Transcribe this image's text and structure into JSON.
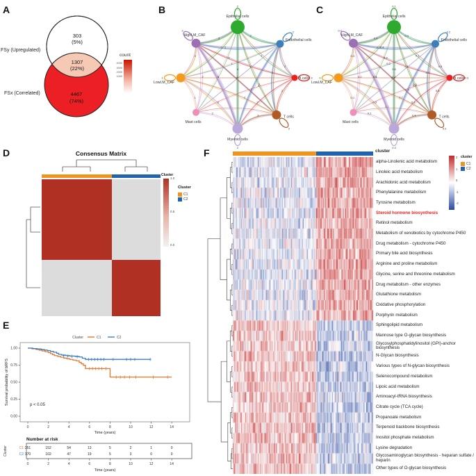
{
  "panels": {
    "a": "A",
    "b": "B",
    "c": "C",
    "d": "D",
    "e": "E",
    "f": "F"
  },
  "venn": {
    "set1_label": "FSy (Upregulated)",
    "set2_label": "FSx (Correlated)",
    "region1_count": "303",
    "region1_pct": "(5%)",
    "overlap_count": "1307",
    "overlap_pct": "(22%)",
    "region2_count": "4467",
    "region2_pct": "(74%)",
    "legend_title": "count",
    "legend_ticks": [
      "4000",
      "3000",
      "2000",
      "1000"
    ],
    "colors": {
      "set1_fill": "#ffffff",
      "overlap_fill": "#f6c9b5",
      "set2_fill": "#ec2024"
    }
  },
  "cell_network": {
    "nodes": [
      {
        "name": "Epithelial cells",
        "color": "#2eaa2e",
        "size": 10,
        "angle": -90
      },
      {
        "name": "Endothelial cells",
        "color": "#3d7fb8",
        "size": 5.5,
        "angle": -42
      },
      {
        "name": "B cells",
        "color": "#e8201f",
        "size": 4.5,
        "angle": 0
      },
      {
        "name": "T cells",
        "color": "#b05a28",
        "size": 6.5,
        "angle": 47
      },
      {
        "name": "Myeloid cells",
        "color": "#b9a8d8",
        "size": 7.5,
        "angle": 90
      },
      {
        "name": "Mast cells",
        "color": "#ee8fba",
        "size": 5,
        "angle": 137
      },
      {
        "name": "LowLM_CAF",
        "color": "#f49b1f",
        "size": 6.5,
        "angle": 180
      },
      {
        "name": "HighLM_CAF",
        "color": "#9c6fb5",
        "size": 6.5,
        "angle": -137
      }
    ],
    "edges": [
      {
        "s": 0,
        "t": 1,
        "w": 1.6,
        "b": "2",
        "c": "0.4"
      },
      {
        "s": 0,
        "t": 2,
        "w": 1.0,
        "b": "1",
        "c": "0.1"
      },
      {
        "s": 0,
        "t": 3,
        "w": 1.2,
        "b": "2",
        "c": "0.3"
      },
      {
        "s": 0,
        "t": 4,
        "w": 3.0,
        "b": "4",
        "c": "0.5"
      },
      {
        "s": 0,
        "t": 5,
        "w": 0.8,
        "b": "1",
        "c": "0.1"
      },
      {
        "s": 0,
        "t": 6,
        "w": 1.2,
        "b": "2",
        "c": "0.2"
      },
      {
        "s": 0,
        "t": 7,
        "w": 2.2,
        "b": "3",
        "c": "0.4"
      },
      {
        "s": 1,
        "t": 2,
        "w": 1.2,
        "b": "2",
        "c": "0.5"
      },
      {
        "s": 1,
        "t": 3,
        "w": 1.8,
        "b": "3",
        "c": "0.5"
      },
      {
        "s": 1,
        "t": 4,
        "w": 2.2,
        "b": "3",
        "c": "0.4"
      },
      {
        "s": 1,
        "t": 5,
        "w": 0.8,
        "b": "1",
        "c": "0.1"
      },
      {
        "s": 1,
        "t": 6,
        "w": 0.9,
        "b": "1",
        "c": "0.2"
      },
      {
        "s": 1,
        "t": 7,
        "w": 1.8,
        "b": "2",
        "c": "0.4"
      },
      {
        "s": 2,
        "t": 3,
        "w": 1.2,
        "b": "2",
        "c": "0.4"
      },
      {
        "s": 2,
        "t": 4,
        "w": 1.2,
        "b": "2",
        "c": "0.3"
      },
      {
        "s": 2,
        "t": 5,
        "w": 0.7,
        "b": "1",
        "c": "0.1"
      },
      {
        "s": 2,
        "t": 6,
        "w": 0.8,
        "b": "1",
        "c": "0.2"
      },
      {
        "s": 2,
        "t": 7,
        "w": 1.2,
        "b": "2",
        "c": "0.3"
      },
      {
        "s": 3,
        "t": 4,
        "w": 1.8,
        "b": "3",
        "c": "0.4"
      },
      {
        "s": 3,
        "t": 5,
        "w": 0.8,
        "b": "1",
        "c": "0.2"
      },
      {
        "s": 3,
        "t": 6,
        "w": 1.0,
        "b": "2",
        "c": "0.2"
      },
      {
        "s": 3,
        "t": 7,
        "w": 1.8,
        "b": "3",
        "c": "0.4"
      },
      {
        "s": 4,
        "t": 5,
        "w": 1.0,
        "b": "2",
        "c": "0.2"
      },
      {
        "s": 4,
        "t": 6,
        "w": 1.8,
        "b": "3",
        "c": "0.3"
      },
      {
        "s": 4,
        "t": 7,
        "w": 3.6,
        "b": "5",
        "c": "0.5"
      },
      {
        "s": 5,
        "t": 6,
        "w": 1.0,
        "b": "1",
        "c": "0.1"
      },
      {
        "s": 5,
        "t": 7,
        "w": 1.0,
        "b": "2",
        "c": "0.2"
      },
      {
        "s": 6,
        "t": 7,
        "w": 1.4,
        "b": "2",
        "c": "0.3"
      }
    ],
    "loops": [
      {
        "n": 0,
        "b": "2",
        "c": "0.1"
      },
      {
        "n": 1,
        "b": "2",
        "c": "0.2"
      },
      {
        "n": 2,
        "b": "3",
        "c": "0.3"
      },
      {
        "n": 3,
        "b": "2",
        "c": "0.2"
      },
      {
        "n": 4,
        "b": "2",
        "c": "0.3"
      },
      {
        "n": 6,
        "b": "1",
        "c": "0"
      },
      {
        "n": 7,
        "b": "2",
        "c": "0.2"
      }
    ]
  },
  "consensus": {
    "title": "Consensus Matrix",
    "colorbar_title": "Cluster",
    "colorbar_ticks": [
      "1.0",
      "0.5",
      "0.0"
    ],
    "legend_title": "Cluster",
    "clusters": [
      {
        "label": "C1",
        "color": "#f0941f"
      },
      {
        "label": "C2",
        "color": "#2263ae"
      }
    ],
    "block_high_color": "#b03123",
    "block_low_color": "#dcdcdc"
  },
  "km": {
    "legend_title": "Cluster",
    "ylabel": "Survival probability of bRFS",
    "xlabel": "Time (years)",
    "yticks": [
      "1.00",
      "0.75",
      "0.50",
      "0.25",
      "0.00"
    ],
    "xticks": [
      "0",
      "2",
      "4",
      "6",
      "8",
      "10",
      "12",
      "14"
    ],
    "pvalue": "p < 0.05",
    "risk_title": "Number at risk",
    "risk_ylabel": "Cluster",
    "risk_xlabel": "Time (years)"
  },
  "pathway_heatmap": {
    "annotation_title": "cluster",
    "legend_title": "cluster",
    "legend_ticks": [
      "2",
      "1",
      "0",
      "-1",
      "-2"
    ],
    "clusters": [
      {
        "label": "C1",
        "color": "#f0941f"
      },
      {
        "label": "C2",
        "color": "#2263ae"
      }
    ],
    "highlight": "Steroid hormone biosynthesis"
  },
  "chart_data": [
    {
      "id": "venn",
      "type": "venn",
      "sets": [
        "FSy (Upregulated)",
        "FSx (Correlated)"
      ],
      "values": {
        "FSy_only": 303,
        "intersection": 1307,
        "FSx_only": 4467
      },
      "percentages": {
        "FSy_only": "5%",
        "intersection": "22%",
        "FSx_only": "74%"
      },
      "legend_title": "count",
      "legend_ticks": [
        4000,
        3000,
        2000,
        1000
      ]
    },
    {
      "id": "network_b",
      "type": "network",
      "nodes": [
        "Epithelial cells",
        "Endothelial cells",
        "B cells",
        "T cells",
        "Myeloid cells",
        "Mast cells",
        "LowLM_CAF",
        "HighLM_CAF"
      ],
      "edge_label_range": [
        1,
        5
      ]
    },
    {
      "id": "network_c",
      "type": "network",
      "nodes": [
        "Epithelial cells",
        "Endothelial cells",
        "B cells",
        "T cells",
        "Myeloid cells",
        "Mast cells",
        "LowLM_CAF",
        "HighLM_CAF"
      ],
      "edge_label_range": [
        0.1,
        0.5
      ]
    },
    {
      "id": "consensus",
      "type": "heatmap",
      "title": "Consensus Matrix",
      "matrix": [
        [
          1,
          0
        ],
        [
          0,
          1
        ]
      ],
      "row_groups": [
        "C1",
        "C2"
      ],
      "col_groups": [
        "C1",
        "C2"
      ],
      "colorbar_ticks": [
        1.0,
        0.5,
        0.0
      ]
    },
    {
      "id": "km",
      "type": "line",
      "xlabel": "Time (years)",
      "ylabel": "Survival probability of bRFS",
      "xlim": [
        0,
        14
      ],
      "ylim": [
        0,
        1
      ],
      "pvalue": "p < 0.05",
      "legend_position": "top",
      "series": [
        {
          "name": "C1",
          "color": "#e8772e",
          "steps": [
            [
              0,
              1
            ],
            [
              0.4,
              0.99
            ],
            [
              0.8,
              0.98
            ],
            [
              1.1,
              0.97
            ],
            [
              1.4,
              0.958
            ],
            [
              1.7,
              0.948
            ],
            [
              2.0,
              0.935
            ],
            [
              2.2,
              0.92
            ],
            [
              2.4,
              0.905
            ],
            [
              2.6,
              0.89
            ],
            [
              2.9,
              0.878
            ],
            [
              3.2,
              0.866
            ],
            [
              3.5,
              0.854
            ],
            [
              3.8,
              0.844
            ],
            [
              4.1,
              0.834
            ],
            [
              4.4,
              0.824
            ],
            [
              4.7,
              0.814
            ],
            [
              5.0,
              0.79
            ],
            [
              5.2,
              0.77
            ],
            [
              5.4,
              0.748
            ],
            [
              5.6,
              0.7
            ],
            [
              8.0,
              0.575
            ],
            [
              14,
              0.575
            ]
          ],
          "censors": [
            [
              6.0,
              0.7
            ],
            [
              6.3,
              0.7
            ],
            [
              6.6,
              0.7
            ],
            [
              6.9,
              0.7
            ],
            [
              7.2,
              0.7
            ],
            [
              7.6,
              0.7
            ],
            [
              8.6,
              0.575
            ],
            [
              9.0,
              0.575
            ],
            [
              9.4,
              0.575
            ],
            [
              9.9,
              0.575
            ],
            [
              10.5,
              0.575
            ],
            [
              12.2,
              0.575
            ],
            [
              13.6,
              0.575
            ]
          ]
        },
        {
          "name": "C2",
          "color": "#3c7fc0",
          "steps": [
            [
              0,
              1
            ],
            [
              0.5,
              0.994
            ],
            [
              0.9,
              0.988
            ],
            [
              1.3,
              0.98
            ],
            [
              1.6,
              0.972
            ],
            [
              1.9,
              0.964
            ],
            [
              2.2,
              0.952
            ],
            [
              2.5,
              0.94
            ],
            [
              2.8,
              0.925
            ],
            [
              3.0,
              0.908
            ],
            [
              3.3,
              0.898
            ],
            [
              3.7,
              0.89
            ],
            [
              4.1,
              0.884
            ],
            [
              4.6,
              0.878
            ],
            [
              5.0,
              0.87
            ],
            [
              5.3,
              0.852
            ],
            [
              5.6,
              0.835
            ],
            [
              11.9,
              0.835
            ]
          ],
          "censors": [
            [
              3.5,
              0.89
            ],
            [
              3.9,
              0.884
            ],
            [
              4.3,
              0.88
            ],
            [
              4.8,
              0.874
            ],
            [
              5.9,
              0.835
            ],
            [
              6.2,
              0.835
            ],
            [
              6.5,
              0.835
            ],
            [
              6.8,
              0.835
            ],
            [
              7.1,
              0.835
            ],
            [
              7.4,
              0.835
            ],
            [
              8.3,
              0.835
            ],
            [
              9.6,
              0.835
            ],
            [
              10.0,
              0.835
            ],
            [
              10.4,
              0.835
            ],
            [
              11.9,
              0.835
            ]
          ]
        }
      ]
    },
    {
      "id": "risk_table",
      "type": "table",
      "title": "Number at risk",
      "row_header": "Cluster",
      "columns": [
        0,
        2,
        4,
        6,
        8,
        10,
        12,
        14
      ],
      "rows": [
        {
          "name": "C1",
          "values": [
            251,
            152,
            54,
            13,
            5,
            2,
            1,
            0
          ]
        },
        {
          "name": "C2",
          "values": [
            170,
            102,
            47,
            19,
            5,
            3,
            0,
            0
          ]
        }
      ]
    },
    {
      "id": "pathway_heatmap",
      "type": "heatmap",
      "rows": [
        "alpha-Linolenic acid metabolism",
        "Linoleic acid metabolism",
        "Arachidonic acid metabolism",
        "Phenylalanine metabolism",
        "Tyrosine metabolism",
        "Steroid hormone biosynthesis",
        "Retinol metabolism",
        "Metabolism of xenobiotics by cytochrome P450",
        "Drug metabolism - cytochrome P450",
        "Primary bile acid biosynthesis",
        "Arginine and proline metabolism",
        "Glycine, serine and threonine metabolism",
        "Drug metabolism - other enzymes",
        "Glutathione metabolism",
        "Oxidative phosphorylation",
        "Porphyrin metabolism",
        "Sphingolipid metabolism",
        "Mannose type O-glycan biosynthesis",
        "Glycosylphosphatidylinositol (GPI)-anchor biosynthesis",
        "N-Glycan biosynthesis",
        "Various types of N-glycan biosynthesis",
        "Selenocompound metabolism",
        "Lipoic acid metabolism",
        "Aminoacyl-tRNA biosynthesis",
        "Citrate cycle (TCA cycle)",
        "Propanoate metabolism",
        "Terpenoid backbone biosynthesis",
        "Inositol phosphate metabolism",
        "Lysine degradation",
        "Glycosaminoglycan biosynthesis - heparan sulfate / heparin",
        "Other types of O-glycan biosynthesis"
      ],
      "col_groups": [
        {
          "label": "C1",
          "color": "#f0941f",
          "fraction": 0.59
        },
        {
          "label": "C2",
          "color": "#2263ae",
          "fraction": 0.41
        }
      ],
      "value_ticks": [
        2,
        1,
        0,
        -1,
        -2
      ],
      "highlighted_row": "Steroid hormone biosynthesis"
    }
  ]
}
